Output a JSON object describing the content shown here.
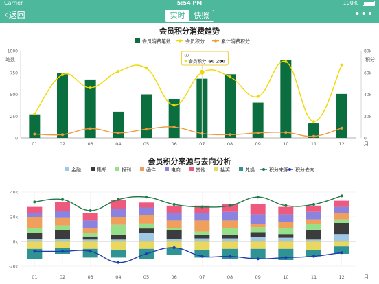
{
  "statusbar": {
    "carrier": "Carrier",
    "time": "5:54 PM",
    "battery": "100%"
  },
  "navbar": {
    "back_label": "返回",
    "tab_realtime": "实时",
    "tab_snapshot": "快照",
    "more_icon": "more-dots-icon"
  },
  "colors": {
    "brand": "#4db89c",
    "bar": "#0b6e3e",
    "line_member": "#f0d800",
    "line_cum": "#f09a3c",
    "source": "#1f7a4a",
    "dest": "#1d3cb0"
  },
  "chart_data": [
    {
      "type": "bar",
      "title": "会员积分消费趋势",
      "legend": [
        "会员消费笔数",
        "会员积分",
        "累计消费积分"
      ],
      "legend_position": "top-center",
      "categories": [
        "01",
        "02",
        "03",
        "04",
        "05",
        "06",
        "07",
        "08",
        "09",
        "10",
        "11",
        "12"
      ],
      "xlabel": "月",
      "ylabel_left": "笔数",
      "ylabel_right": "积分",
      "ylim_left": [
        0,
        1000
      ],
      "yticks_left": [
        "0",
        "250",
        "500",
        "750",
        "1000"
      ],
      "ylim_right": [
        0,
        80000
      ],
      "yticks_right": [
        "0",
        "20k",
        "40k",
        "60k",
        "80k"
      ],
      "series": [
        {
          "name": "会员消费笔数",
          "type": "bar",
          "axis": "left",
          "values": [
            270,
            740,
            670,
            300,
            500,
            445,
            680,
            730,
            405,
            895,
            165,
            505
          ]
        },
        {
          "name": "会员积分",
          "type": "line",
          "axis": "right",
          "values": [
            22000,
            58000,
            46000,
            61000,
            64000,
            30000,
            60280,
            56000,
            38000,
            70000,
            15000,
            67000
          ]
        },
        {
          "name": "累计消费积分",
          "type": "line",
          "axis": "right",
          "values": [
            3500,
            3000,
            8500,
            4500,
            8000,
            10000,
            4000,
            3000,
            4500,
            5000,
            1500,
            9000
          ]
        }
      ],
      "tooltip": {
        "category": "07",
        "label": "会员积分",
        "value": "60 280"
      }
    },
    {
      "type": "bar",
      "title": "会员积分来源与去向分析",
      "legend": [
        "金融",
        "集邮",
        "报刊",
        "函件",
        "电商",
        "其他",
        "抽奖",
        "兑换",
        "积分来源",
        "积分去向"
      ],
      "legend_position": "top-center",
      "categories": [
        "01",
        "02",
        "03",
        "04",
        "05",
        "06",
        "07",
        "08",
        "09",
        "10",
        "11",
        "12"
      ],
      "xlabel": "月",
      "ylim": [
        -20000,
        40000
      ],
      "yticks": [
        "-20k",
        "0k",
        "20k",
        "40k"
      ],
      "stacked": true,
      "series": [
        {
          "name": "金融",
          "values": [
            2000,
            2000,
            1500,
            1500,
            7000,
            2000,
            2500,
            2500,
            3500,
            3000,
            1500,
            6000
          ]
        },
        {
          "name": "集邮",
          "values": [
            5000,
            7000,
            2500,
            4000,
            3500,
            7000,
            2500,
            2500,
            4000,
            3000,
            8000,
            9000
          ]
        },
        {
          "name": "报刊",
          "values": [
            4000,
            4000,
            3000,
            8000,
            4000,
            2000,
            3000,
            6000,
            4000,
            5000,
            4500,
            3000
          ]
        },
        {
          "name": "函件",
          "values": [
            9000,
            6000,
            4000,
            6000,
            7000,
            6000,
            9000,
            6000,
            2500,
            5000,
            4000,
            5000
          ]
        },
        {
          "name": "电商",
          "values": [
            3000,
            6000,
            6000,
            7000,
            6000,
            6000,
            6000,
            7000,
            8000,
            6000,
            6000,
            5000
          ]
        },
        {
          "name": "其他",
          "values": [
            5000,
            7000,
            6000,
            7000,
            4000,
            6000,
            6000,
            6500,
            8000,
            6000,
            5000,
            5000
          ]
        },
        {
          "name": "抽奖",
          "values": [
            -6000,
            -5000,
            -6000,
            -7000,
            -6000,
            -5000,
            -7000,
            -6000,
            -6000,
            -6000,
            -7000,
            -4000
          ]
        },
        {
          "name": "兑换",
          "values": [
            -8000,
            -5000,
            -7000,
            -6000,
            -8000,
            -6000,
            -6000,
            -8000,
            -8000,
            -9000,
            -5000,
            -6000
          ]
        },
        {
          "name": "积分来源",
          "type": "line",
          "values": [
            32000,
            34000,
            25000,
            34000,
            36000,
            30000,
            28000,
            29000,
            36000,
            29000,
            30000,
            37000
          ]
        },
        {
          "name": "积分去向",
          "type": "line",
          "values": [
            -8000,
            -8000,
            -8000,
            -17000,
            -10000,
            -5000,
            -12000,
            -12000,
            -14000,
            -13000,
            -12000,
            -9000
          ]
        }
      ],
      "grid": true
    }
  ]
}
